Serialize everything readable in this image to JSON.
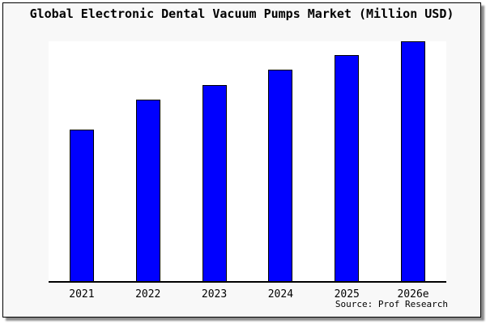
{
  "source_credit": "Source: Prof Research",
  "colors": {
    "bar_fill": "#0000FF",
    "bar_border": "#000000",
    "frame_background": "#F8F8F8",
    "plot_background": "#FFFFFF",
    "axis": "#000000"
  },
  "chart_data": {
    "type": "bar",
    "title": "Global Electronic Dental Vacuum Pumps Market (Million USD)",
    "categories": [
      "2021",
      "2022",
      "2023",
      "2024",
      "2025",
      "2026e"
    ],
    "values": [
      63.2,
      75.6,
      81.9,
      88.3,
      94.3,
      100
    ],
    "xlabel": "",
    "ylabel": "",
    "ylim": [
      0,
      100
    ],
    "grid": false,
    "legend": false,
    "y_axis_labels_shown": false,
    "values_note": "relative bar heights estimated from pixels; chart displays no y-axis scale"
  }
}
